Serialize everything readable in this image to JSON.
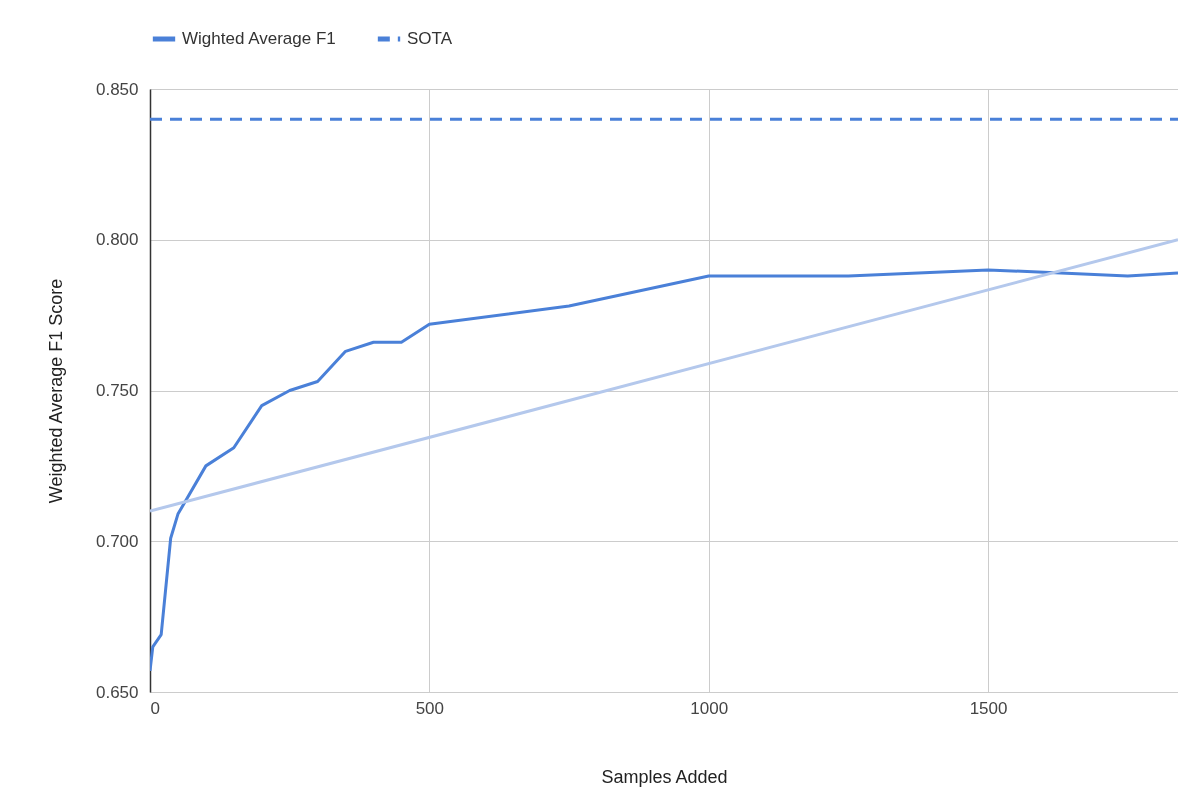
{
  "chart_data": {
    "type": "line",
    "xlabel": "Samples Added",
    "ylabel": "Weighted Average F1 Score",
    "xlim": [
      0,
      1840
    ],
    "xticks": [
      0,
      500,
      1000,
      1500
    ],
    "ylim": [
      0.65,
      0.85
    ],
    "yticks": [
      {
        "value": 0.65,
        "label": "0.650"
      },
      {
        "value": 0.7,
        "label": "0.700"
      },
      {
        "value": 0.75,
        "label": "0.750"
      },
      {
        "value": 0.8,
        "label": "0.800"
      },
      {
        "value": 0.85,
        "label": "0.850"
      }
    ],
    "grid": true,
    "legend": "top",
    "marker": "none",
    "series": [
      {
        "name": "Wighted Average F1",
        "color": "#4a80d8",
        "line_style": "solid",
        "x": [
          0,
          5,
          20,
          37,
          50,
          100,
          150,
          200,
          250,
          300,
          350,
          400,
          450,
          500,
          750,
          1000,
          1250,
          1500,
          1750,
          1840
        ],
        "values": [
          0.657,
          0.665,
          0.669,
          0.701,
          0.709,
          0.725,
          0.731,
          0.745,
          0.75,
          0.753,
          0.763,
          0.766,
          0.766,
          0.772,
          0.778,
          0.788,
          0.788,
          0.79,
          0.788,
          0.789
        ]
      },
      {
        "name": "SOTA",
        "color": "#4a80d8",
        "line_style": "dashed",
        "x": [
          0,
          1840
        ],
        "values": [
          0.84,
          0.84
        ]
      },
      {
        "color": "#b4c8ec",
        "line_style": "solid",
        "x": [
          0,
          1840
        ],
        "values": [
          0.71,
          0.8
        ]
      }
    ]
  }
}
